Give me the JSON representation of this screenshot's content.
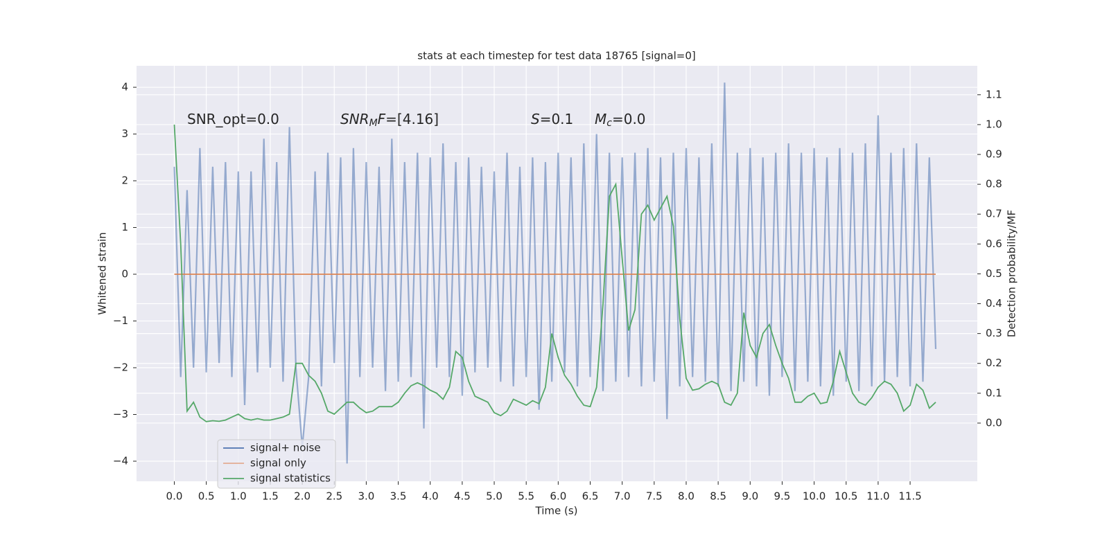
{
  "chart_data": {
    "type": "line",
    "title": "stats at each timestep for test data 18765 [signal=0]",
    "xlabel": "Time (s)",
    "ylabel": "Whitened strain",
    "y2label": "Detection probability/MF",
    "annotations": [
      {
        "parts": [
          {
            "text": "SNR_opt=0.0",
            "style": "normal"
          }
        ]
      },
      {
        "parts": [
          {
            "text": "SNR",
            "style": "italic"
          },
          {
            "text": "M",
            "style": "sub"
          },
          {
            "text": "F",
            "style": "italic"
          },
          {
            "text": "=[4.16]",
            "style": "normal"
          }
        ]
      },
      {
        "parts": [
          {
            "text": "S",
            "style": "italic"
          },
          {
            "text": "=0.1",
            "style": "normal"
          }
        ]
      },
      {
        "parts": [
          {
            "text": "M",
            "style": "italic"
          },
          {
            "text": "c",
            "style": "sub"
          },
          {
            "text": "=0.0",
            "style": "normal"
          }
        ]
      }
    ],
    "xlim": [
      -0.59,
      12.55
    ],
    "ylim": [
      -4.43,
      4.46
    ],
    "y2lim": [
      -0.195,
      1.197
    ],
    "grid": true,
    "legend": "lower left",
    "xticks": [
      {
        "value": 0,
        "label": "0.0"
      },
      {
        "value": 0.5,
        "label": "0.5"
      },
      {
        "value": 1,
        "label": "1.0"
      },
      {
        "value": 1.5,
        "label": "1.5"
      },
      {
        "value": 2,
        "label": "2.0"
      },
      {
        "value": 2.5,
        "label": "2.5"
      },
      {
        "value": 3,
        "label": "3.0"
      },
      {
        "value": 3.5,
        "label": "3.5"
      },
      {
        "value": 4,
        "label": "4.0"
      },
      {
        "value": 4.5,
        "label": "4.5"
      },
      {
        "value": 5,
        "label": "5.0"
      },
      {
        "value": 5.5,
        "label": "5.5"
      },
      {
        "value": 6,
        "label": "6.0"
      },
      {
        "value": 6.5,
        "label": "6.5"
      },
      {
        "value": 7,
        "label": "7.0"
      },
      {
        "value": 7.5,
        "label": "7.5"
      },
      {
        "value": 8,
        "label": "8.0"
      },
      {
        "value": 8.5,
        "label": "8.5"
      },
      {
        "value": 9,
        "label": "9.0"
      },
      {
        "value": 9.5,
        "label": "9.5"
      },
      {
        "value": 10,
        "label": "10.0"
      },
      {
        "value": 10.5,
        "label": "10.5"
      },
      {
        "value": 11,
        "label": "11.0"
      },
      {
        "value": 11.5,
        "label": "11.5"
      }
    ],
    "yticks": [
      {
        "value": -4,
        "label": "−4"
      },
      {
        "value": -3,
        "label": "−3"
      },
      {
        "value": -2,
        "label": "−2"
      },
      {
        "value": -1,
        "label": "−1"
      },
      0,
      1,
      2,
      3,
      4
    ],
    "y2ticks": [
      {
        "value": 0,
        "label": "0.0"
      },
      {
        "value": 0.1,
        "label": "0.1"
      },
      {
        "value": 0.2,
        "label": "0.2"
      },
      {
        "value": 0.3,
        "label": "0.3"
      },
      {
        "value": 0.4,
        "label": "0.4"
      },
      {
        "value": 0.5,
        "label": "0.5"
      },
      {
        "value": 0.6,
        "label": "0.6"
      },
      {
        "value": 0.7,
        "label": "0.7"
      },
      {
        "value": 0.8,
        "label": "0.8"
      },
      {
        "value": 0.9,
        "label": "0.9"
      },
      {
        "value": 1.0,
        "label": "1.0"
      },
      {
        "value": 1.1,
        "label": "1.1"
      }
    ],
    "x": [
      0,
      0.1,
      0.2,
      0.3,
      0.4,
      0.5,
      0.6,
      0.7,
      0.8,
      0.9,
      1,
      1.1,
      1.2,
      1.3,
      1.4,
      1.5,
      1.6,
      1.7,
      1.8,
      1.9,
      2,
      2.1,
      2.2,
      2.3,
      2.4,
      2.5,
      2.6,
      2.7,
      2.8,
      2.9,
      3,
      3.1,
      3.2,
      3.3,
      3.4,
      3.5,
      3.6,
      3.7,
      3.8,
      3.9,
      4,
      4.1,
      4.2,
      4.3,
      4.4,
      4.5,
      4.6,
      4.7,
      4.8,
      4.9,
      5,
      5.1,
      5.2,
      5.3,
      5.4,
      5.5,
      5.6,
      5.7,
      5.8,
      5.9,
      6,
      6.1,
      6.2,
      6.3,
      6.4,
      6.5,
      6.6,
      6.7,
      6.8,
      6.9,
      7,
      7.1,
      7.2,
      7.3,
      7.4,
      7.5,
      7.6,
      7.7,
      7.8,
      7.9,
      8,
      8.1,
      8.2,
      8.3,
      8.4,
      8.5,
      8.6,
      8.7,
      8.8,
      8.9,
      9,
      9.1,
      9.2,
      9.3,
      9.4,
      9.5,
      9.6,
      9.7,
      9.8,
      9.9,
      10,
      10.1,
      10.2,
      10.3,
      10.4,
      10.5,
      10.6,
      10.7,
      10.8,
      10.9,
      11,
      11.1,
      11.2,
      11.3,
      11.4,
      11.5,
      11.6,
      11.7,
      11.8,
      11.9
    ],
    "series": [
      {
        "name": "signal+ noise",
        "color": "#4c72b0",
        "values": [
          2.3,
          -2.2,
          1.8,
          -2.0,
          2.7,
          -2.1,
          2.3,
          -1.9,
          2.4,
          -2.2,
          2.2,
          -2.8,
          2.2,
          -2.1,
          2.9,
          -2.0,
          2.4,
          -2.3,
          3.15,
          -2.0,
          -3.7,
          -2.2,
          2.2,
          -2.4,
          2.6,
          -1.9,
          2.5,
          -4.05,
          2.7,
          -2.2,
          2.4,
          -2.0,
          2.3,
          -2.5,
          2.9,
          -2.3,
          2.4,
          -2.2,
          2.6,
          -3.3,
          2.5,
          -2.0,
          2.8,
          -2.2,
          2.4,
          -2.6,
          2.5,
          -2.1,
          2.3,
          -2.0,
          2.2,
          -2.3,
          2.6,
          -2.4,
          2.3,
          -2.2,
          2.5,
          -2.9,
          2.4,
          -2.3,
          2.6,
          -2.1,
          2.5,
          -2.4,
          2.8,
          -2.2,
          3.0,
          -2.5,
          2.6,
          -2.3,
          2.5,
          -2.2,
          2.6,
          -2.4,
          2.7,
          -2.3,
          2.5,
          -3.1,
          2.6,
          -2.4,
          2.7,
          -2.2,
          2.5,
          -2.3,
          2.8,
          -2.4,
          4.1,
          -2.5,
          2.6,
          -2.3,
          2.7,
          -2.4,
          2.5,
          -2.6,
          2.6,
          -2.2,
          2.8,
          -2.5,
          2.6,
          -2.3,
          2.7,
          -2.4,
          2.5,
          -2.6,
          2.7,
          -2.3,
          2.6,
          -2.5,
          2.8,
          -2.4,
          3.4,
          -2.3,
          2.6,
          -2.2,
          2.7,
          -2.4,
          2.8,
          -2.3,
          2.5,
          -1.6
        ]
      },
      {
        "name": "signal only",
        "color": "#dd8452",
        "values": [
          0,
          0,
          0,
          0,
          0,
          0,
          0,
          0,
          0,
          0,
          0,
          0,
          0,
          0,
          0,
          0,
          0,
          0,
          0,
          0,
          0,
          0,
          0,
          0,
          0,
          0,
          0,
          0,
          0,
          0,
          0,
          0,
          0,
          0,
          0,
          0,
          0,
          0,
          0,
          0,
          0,
          0,
          0,
          0,
          0,
          0,
          0,
          0,
          0,
          0,
          0,
          0,
          0,
          0,
          0,
          0,
          0,
          0,
          0,
          0,
          0,
          0,
          0,
          0,
          0,
          0,
          0,
          0,
          0,
          0,
          0,
          0,
          0,
          0,
          0,
          0,
          0,
          0,
          0,
          0,
          0,
          0,
          0,
          0,
          0,
          0,
          0,
          0,
          0,
          0,
          0,
          0,
          0,
          0,
          0,
          0,
          0,
          0,
          0,
          0,
          0,
          0,
          0,
          0,
          0,
          0,
          0,
          0,
          0,
          0,
          0,
          0,
          0,
          0,
          0,
          0,
          0,
          0,
          0,
          0
        ]
      },
      {
        "name": "signal statistics",
        "color": "#55a868",
        "axis": "y2",
        "values": [
          1.0,
          0.6,
          0.04,
          0.07,
          0.02,
          0.005,
          0.008,
          0.006,
          0.01,
          0.02,
          0.03,
          0.015,
          0.01,
          0.015,
          0.01,
          0.01,
          0.015,
          0.02,
          0.03,
          0.2,
          0.2,
          0.16,
          0.14,
          0.1,
          0.04,
          0.03,
          0.05,
          0.07,
          0.07,
          0.05,
          0.035,
          0.04,
          0.055,
          0.055,
          0.055,
          0.07,
          0.1,
          0.125,
          0.135,
          0.125,
          0.11,
          0.1,
          0.08,
          0.12,
          0.24,
          0.22,
          0.14,
          0.09,
          0.08,
          0.07,
          0.035,
          0.025,
          0.04,
          0.08,
          0.07,
          0.06,
          0.075,
          0.065,
          0.12,
          0.3,
          0.22,
          0.16,
          0.13,
          0.09,
          0.06,
          0.055,
          0.12,
          0.4,
          0.76,
          0.8,
          0.55,
          0.31,
          0.38,
          0.7,
          0.73,
          0.68,
          0.72,
          0.76,
          0.66,
          0.35,
          0.15,
          0.11,
          0.115,
          0.13,
          0.14,
          0.13,
          0.07,
          0.06,
          0.1,
          0.37,
          0.26,
          0.22,
          0.3,
          0.33,
          0.26,
          0.2,
          0.15,
          0.07,
          0.07,
          0.09,
          0.1,
          0.065,
          0.07,
          0.14,
          0.24,
          0.17,
          0.1,
          0.07,
          0.06,
          0.085,
          0.12,
          0.14,
          0.13,
          0.1,
          0.04,
          0.06,
          0.13,
          0.11,
          0.05,
          0.07
        ]
      }
    ]
  }
}
